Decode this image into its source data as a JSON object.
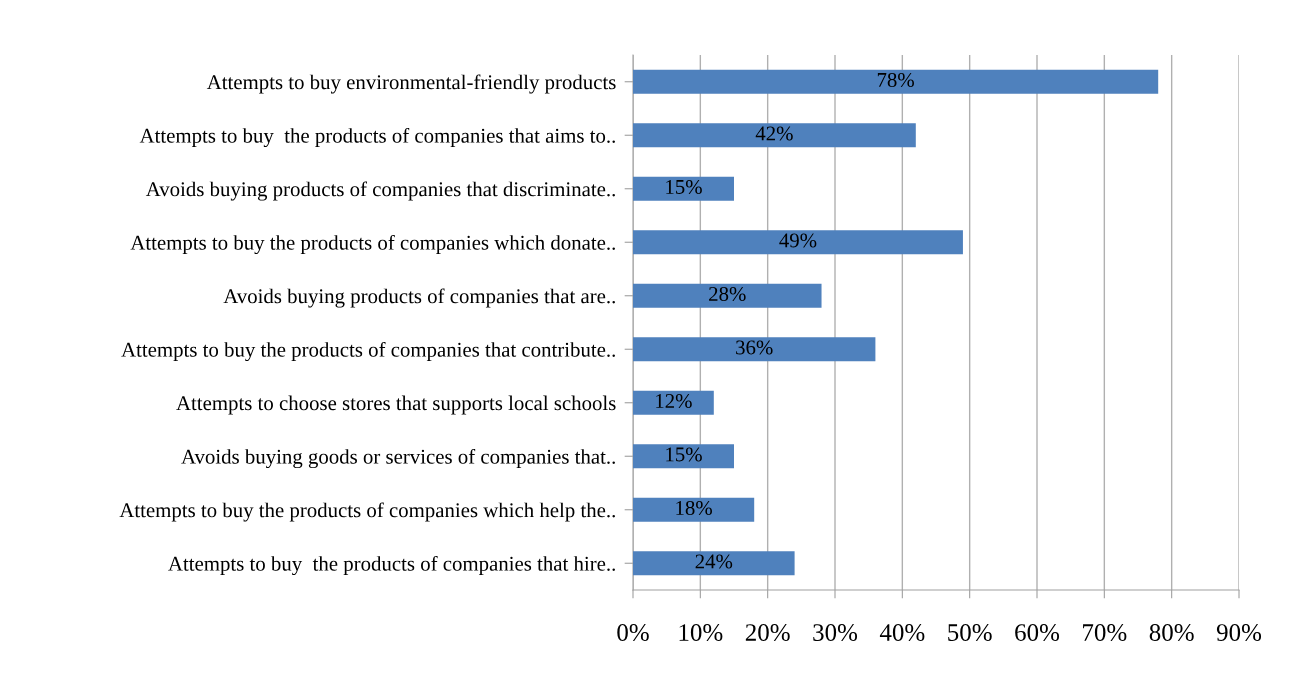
{
  "chart_data": {
    "type": "bar",
    "orientation": "horizontal",
    "categories": [
      "Attempts to buy environmental-friendly products",
      "Attempts to buy  the products of companies that aims to..",
      "Avoids buying products of companies that discriminate..",
      "Attempts to buy the products of companies which donate..",
      "Avoids buying products of companies that are..",
      "Attempts to buy the products of companies that contribute..",
      "Attempts to choose stores that supports local schools",
      "Avoids buying goods or services of companies that..",
      "Attempts to buy the products of companies which help the..",
      "Attempts to buy  the products of companies that hire.."
    ],
    "values": [
      78,
      42,
      15,
      49,
      28,
      36,
      12,
      15,
      18,
      24
    ],
    "value_labels": [
      "78%",
      "42%",
      "15%",
      "49%",
      "28%",
      "36%",
      "12%",
      "15%",
      "18%",
      "24%"
    ],
    "color": "#4f81bd",
    "xlim": [
      0,
      90
    ],
    "xticks": [
      {
        "value": 0,
        "label": "0%"
      },
      {
        "value": 10,
        "label": "10%"
      },
      {
        "value": 20,
        "label": "20%"
      },
      {
        "value": 30,
        "label": "30%"
      },
      {
        "value": 40,
        "label": "40%"
      },
      {
        "value": 50,
        "label": "50%"
      },
      {
        "value": 60,
        "label": "60%"
      },
      {
        "value": 70,
        "label": "70%"
      },
      {
        "value": 80,
        "label": "80%"
      },
      {
        "value": 90,
        "label": "90%"
      }
    ],
    "grid": "x",
    "legend": false
  }
}
